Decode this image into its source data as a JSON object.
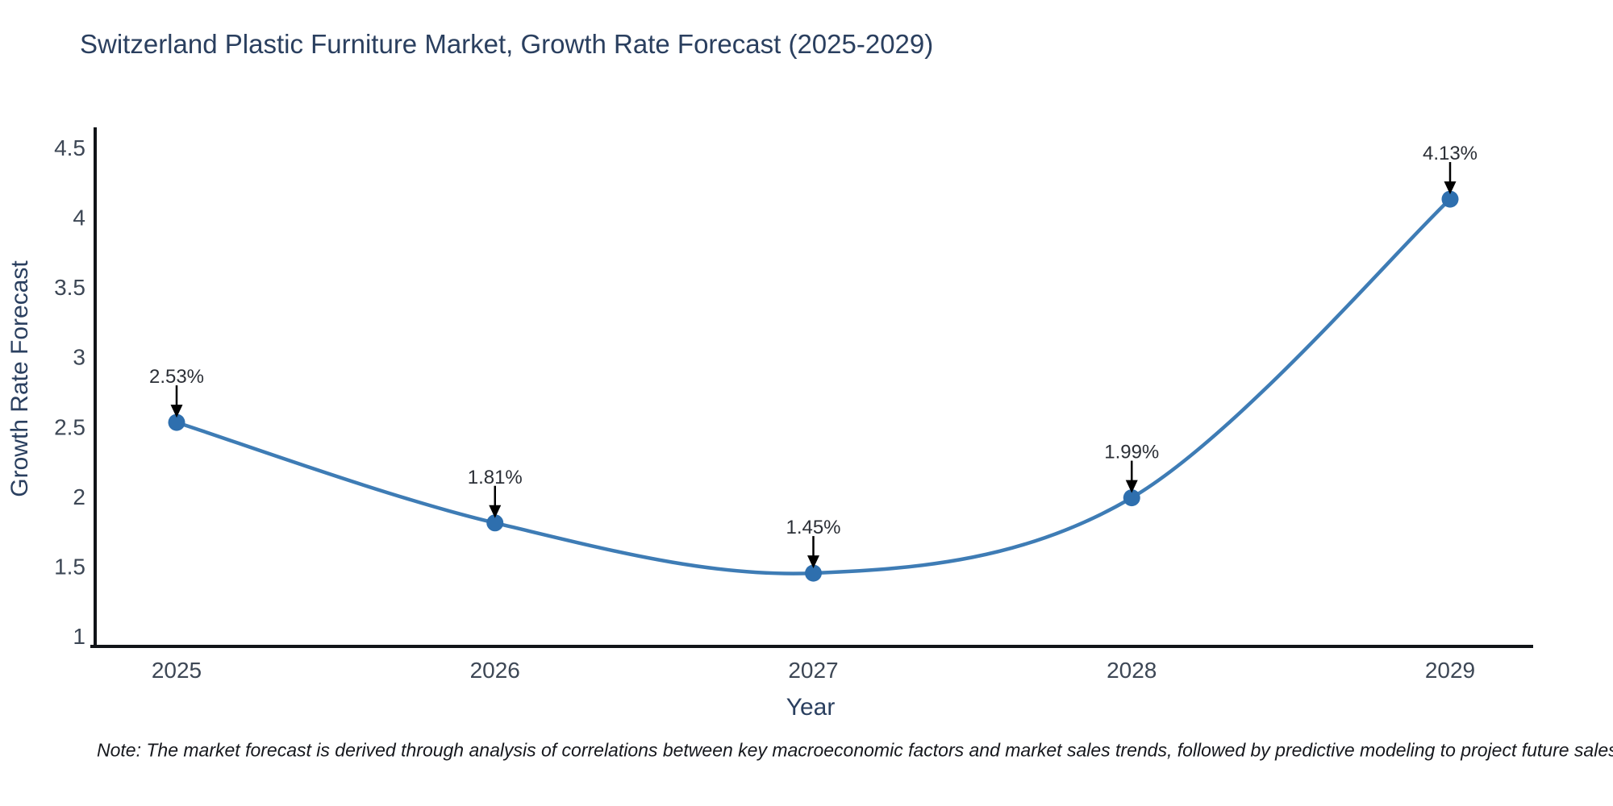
{
  "header": {
    "title": "Switzerland Plastic Furniture Market, Growth Rate Forecast (2025-2029)"
  },
  "note": {
    "text": "Note: The market forecast is derived through analysis of correlations between key macroeconomic factors and market sales trends, followed by predictive modeling to project future sales"
  },
  "chart_data": {
    "type": "line",
    "title": "Switzerland Plastic Furniture Market, Growth Rate Forecast (2025-2029)",
    "categories": [
      "2025",
      "2026",
      "2027",
      "2028",
      "2029"
    ],
    "values": [
      2.53,
      1.81,
      1.45,
      1.99,
      4.13
    ],
    "point_labels": [
      "2.53%",
      "1.81%",
      "1.45%",
      "1.99%",
      "4.13%"
    ],
    "xlabel": "Year",
    "ylabel": "Growth Rate Forecast",
    "ylim": [
      1,
      4.5
    ],
    "yticks": [
      4.5,
      4,
      3.5,
      3,
      2.5,
      2,
      1.5,
      1
    ],
    "line_shape": "spline",
    "grid": false,
    "legend": false,
    "colors": {
      "line": "#3e7cb5",
      "marker": "#2e6fae",
      "axis": "#111418",
      "annotation_arrow": "#000000",
      "annotation_text": "#2b2f36",
      "tick_text": "#3d4755",
      "title_text": "#2a3f5f"
    }
  }
}
